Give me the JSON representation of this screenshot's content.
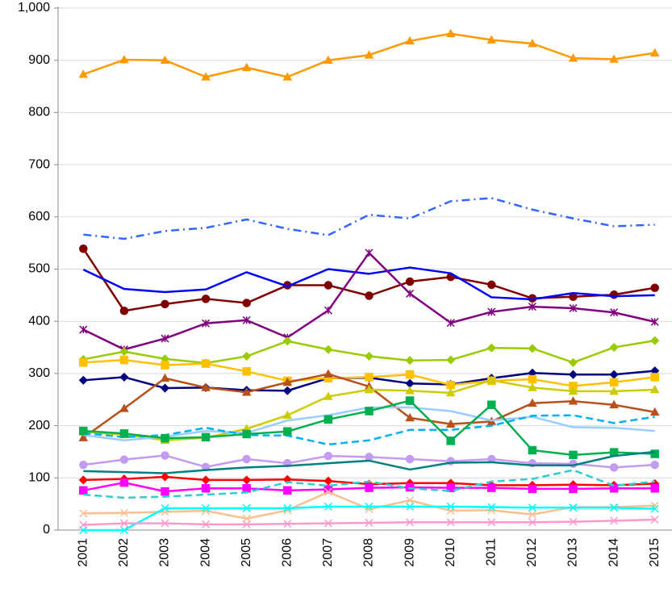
{
  "chart_data": {
    "type": "line",
    "categories": [
      "2001",
      "2002",
      "2003",
      "2004",
      "2005",
      "2006",
      "2007",
      "2008",
      "2009",
      "2010",
      "2011",
      "2012",
      "2013",
      "2014",
      "2015"
    ],
    "ylim": [
      0,
      1000
    ],
    "yticks": [
      0,
      100,
      200,
      300,
      400,
      500,
      600,
      700,
      800,
      900,
      {
        "value": 1000,
        "label": "1,000"
      }
    ],
    "grid": true,
    "series": [
      {
        "color": "#ff9900",
        "marker": "triangle",
        "dash": "solid",
        "values": [
          873,
          901,
          900,
          868,
          886,
          868,
          900,
          910,
          937,
          951,
          939,
          932,
          904,
          902,
          914
        ]
      },
      {
        "color": "#3366ff",
        "marker": "none",
        "dash": "dashdot",
        "values": [
          566,
          558,
          573,
          579,
          595,
          577,
          565,
          604,
          597,
          630,
          636,
          614,
          597,
          582,
          585
        ]
      },
      {
        "color": "#800000",
        "marker": "circle",
        "dash": "solid",
        "values": [
          539,
          420,
          433,
          443,
          435,
          469,
          469,
          449,
          476,
          485,
          470,
          444,
          447,
          451,
          464
        ]
      },
      {
        "color": "#0000ff",
        "marker": "none",
        "dash": "solid",
        "values": [
          499,
          462,
          456,
          461,
          494,
          467,
          500,
          491,
          503,
          492,
          446,
          442,
          454,
          448,
          450
        ]
      },
      {
        "color": "#800080",
        "marker": "star",
        "dash": "solid",
        "values": [
          384,
          346,
          367,
          396,
          402,
          369,
          421,
          531,
          453,
          397,
          418,
          428,
          425,
          417,
          399
        ]
      },
      {
        "color": "#99cc00",
        "marker": "diamond",
        "dash": "solid",
        "values": [
          327,
          342,
          328,
          320,
          333,
          362,
          346,
          333,
          325,
          326,
          349,
          348,
          321,
          350,
          363
        ]
      },
      {
        "color": "#000080",
        "marker": "diamond",
        "dash": "solid",
        "values": [
          287,
          293,
          272,
          273,
          268,
          267,
          291,
          292,
          281,
          279,
          291,
          301,
          298,
          298,
          305
        ]
      },
      {
        "color": "#ffc000",
        "marker": "square",
        "dash": "solid",
        "values": [
          321,
          326,
          316,
          319,
          304,
          286,
          291,
          293,
          298,
          278,
          286,
          289,
          276,
          283,
          293
        ]
      },
      {
        "color": "#b8501a",
        "marker": "triangle",
        "dash": "solid",
        "values": [
          177,
          233,
          291,
          273,
          264,
          283,
          299,
          275,
          215,
          203,
          208,
          243,
          247,
          240,
          226
        ]
      },
      {
        "color": "#cccc00",
        "marker": "triangle",
        "dash": "solid",
        "values": [
          188,
          183,
          172,
          177,
          194,
          220,
          256,
          269,
          267,
          263,
          287,
          273,
          266,
          266,
          269
        ]
      },
      {
        "color": "#99ccff",
        "marker": "none",
        "dash": "solid",
        "values": [
          182,
          172,
          179,
          190,
          186,
          210,
          220,
          235,
          235,
          228,
          210,
          217,
          197,
          196,
          190
        ]
      },
      {
        "color": "#00b0f0",
        "marker": "none",
        "dash": "dash",
        "values": [
          186,
          178,
          182,
          196,
          182,
          181,
          164,
          172,
          192,
          192,
          200,
          219,
          220,
          205,
          217
        ]
      },
      {
        "color": "#00b050",
        "marker": "square",
        "dash": "solid",
        "values": [
          190,
          185,
          176,
          178,
          184,
          189,
          212,
          228,
          248,
          171,
          240,
          153,
          144,
          149,
          146
        ]
      },
      {
        "color": "#c39bf0",
        "marker": "circle",
        "dash": "solid",
        "values": [
          125,
          135,
          143,
          121,
          136,
          128,
          142,
          140,
          136,
          132,
          136,
          128,
          127,
          120,
          125
        ]
      },
      {
        "color": "#008080",
        "marker": "none",
        "dash": "solid",
        "values": [
          113,
          111,
          109,
          115,
          120,
          123,
          128,
          133,
          116,
          129,
          130,
          124,
          124,
          142,
          150
        ]
      },
      {
        "color": "#ff0000",
        "marker": "diamond",
        "dash": "solid",
        "values": [
          96,
          98,
          102,
          96,
          96,
          97,
          94,
          88,
          90,
          90,
          86,
          86,
          87,
          86,
          89
        ]
      },
      {
        "color": "#ff00ff",
        "marker": "square",
        "dash": "solid",
        "values": [
          76,
          91,
          74,
          80,
          80,
          76,
          78,
          81,
          82,
          81,
          81,
          79,
          79,
          80,
          80
        ]
      },
      {
        "color": "#33cccc",
        "marker": "none",
        "dash": "dash",
        "values": [
          68,
          62,
          64,
          68,
          72,
          92,
          85,
          93,
          80,
          75,
          93,
          98,
          115,
          85,
          93
        ]
      },
      {
        "color": "#fac090",
        "marker": "x",
        "dash": "solid",
        "values": [
          32,
          33,
          35,
          37,
          22,
          38,
          73,
          40,
          57,
          37,
          38,
          30,
          44,
          44,
          47
        ]
      },
      {
        "color": "#00ffff",
        "marker": "x",
        "dash": "solid",
        "values": [
          0,
          0,
          42,
          42,
          42,
          42,
          45,
          45,
          45,
          45,
          44,
          43,
          43,
          43,
          41
        ]
      },
      {
        "color": "#ff99cc",
        "marker": "x",
        "dash": "solid",
        "values": [
          10,
          13,
          13,
          11,
          11,
          12,
          13,
          14,
          15,
          15,
          15,
          15,
          16,
          18,
          20
        ]
      }
    ]
  }
}
